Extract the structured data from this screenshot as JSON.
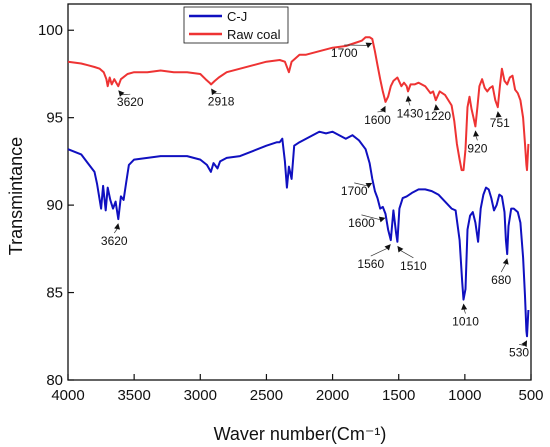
{
  "chart_data": {
    "type": "line",
    "xlabel": "Waver number(Cm⁻¹)",
    "ylabel": "Transmintance",
    "xlim": [
      4000,
      500
    ],
    "ylim": [
      80,
      101.5
    ],
    "x_ticks": [
      4000,
      3500,
      3000,
      2500,
      2000,
      1500,
      1000,
      500
    ],
    "y_ticks": [
      80,
      85,
      90,
      95,
      100
    ],
    "legend_position": "top-left",
    "grid": false,
    "series": [
      {
        "name": "C-J",
        "color": "#1010c0",
        "points": [
          [
            4000,
            93.2
          ],
          [
            3900,
            92.9
          ],
          [
            3850,
            92.4
          ],
          [
            3800,
            91.9
          ],
          [
            3780,
            91.2
          ],
          [
            3750,
            89.8
          ],
          [
            3735,
            91.1
          ],
          [
            3715,
            89.7
          ],
          [
            3700,
            91.0
          ],
          [
            3680,
            90.3
          ],
          [
            3660,
            89.8
          ],
          [
            3640,
            90.2
          ],
          [
            3620,
            89.2
          ],
          [
            3600,
            90.5
          ],
          [
            3580,
            90.3
          ],
          [
            3560,
            91.3
          ],
          [
            3540,
            92.3
          ],
          [
            3500,
            92.6
          ],
          [
            3400,
            92.7
          ],
          [
            3300,
            92.8
          ],
          [
            3200,
            92.8
          ],
          [
            3100,
            92.8
          ],
          [
            3000,
            92.6
          ],
          [
            2950,
            92.3
          ],
          [
            2920,
            91.9
          ],
          [
            2900,
            92.4
          ],
          [
            2870,
            92.1
          ],
          [
            2850,
            92.5
          ],
          [
            2800,
            92.7
          ],
          [
            2700,
            92.8
          ],
          [
            2600,
            93.1
          ],
          [
            2500,
            93.4
          ],
          [
            2420,
            93.6
          ],
          [
            2400,
            93.6
          ],
          [
            2380,
            93.8
          ],
          [
            2360,
            92.5
          ],
          [
            2345,
            91.0
          ],
          [
            2330,
            92.2
          ],
          [
            2310,
            91.5
          ],
          [
            2290,
            93.4
          ],
          [
            2250,
            93.6
          ],
          [
            2200,
            93.8
          ],
          [
            2150,
            94.0
          ],
          [
            2100,
            94.2
          ],
          [
            2050,
            94.1
          ],
          [
            2000,
            94.2
          ],
          [
            1950,
            94.0
          ],
          [
            1900,
            93.8
          ],
          [
            1850,
            94.0
          ],
          [
            1800,
            93.7
          ],
          [
            1750,
            93.2
          ],
          [
            1720,
            92.4
          ],
          [
            1700,
            91.5
          ],
          [
            1680,
            90.8
          ],
          [
            1660,
            90.4
          ],
          [
            1640,
            89.8
          ],
          [
            1620,
            89.9
          ],
          [
            1600,
            89.5
          ],
          [
            1580,
            88.6
          ],
          [
            1560,
            88.0
          ],
          [
            1540,
            89.7
          ],
          [
            1520,
            88.4
          ],
          [
            1510,
            87.9
          ],
          [
            1495,
            89.8
          ],
          [
            1470,
            90.4
          ],
          [
            1440,
            90.5
          ],
          [
            1400,
            90.7
          ],
          [
            1350,
            90.9
          ],
          [
            1300,
            90.9
          ],
          [
            1250,
            90.8
          ],
          [
            1200,
            90.6
          ],
          [
            1150,
            90.2
          ],
          [
            1100,
            89.8
          ],
          [
            1070,
            89.7
          ],
          [
            1040,
            88.0
          ],
          [
            1020,
            85.6
          ],
          [
            1010,
            84.6
          ],
          [
            995,
            85.2
          ],
          [
            980,
            88.6
          ],
          [
            960,
            89.4
          ],
          [
            940,
            89.6
          ],
          [
            920,
            89.0
          ],
          [
            900,
            87.9
          ],
          [
            880,
            89.8
          ],
          [
            860,
            90.6
          ],
          [
            840,
            91.0
          ],
          [
            820,
            90.9
          ],
          [
            800,
            90.4
          ],
          [
            780,
            89.7
          ],
          [
            760,
            90.0
          ],
          [
            740,
            90.6
          ],
          [
            720,
            90.5
          ],
          [
            700,
            89.6
          ],
          [
            690,
            88.0
          ],
          [
            680,
            87.2
          ],
          [
            670,
            88.8
          ],
          [
            650,
            89.8
          ],
          [
            630,
            89.8
          ],
          [
            600,
            89.6
          ],
          [
            580,
            89.0
          ],
          [
            560,
            87.0
          ],
          [
            545,
            84.8
          ],
          [
            535,
            82.8
          ],
          [
            530,
            82.5
          ],
          [
            520,
            84.0
          ]
        ]
      },
      {
        "name": "Raw coal",
        "color": "#ee3333",
        "points": [
          [
            4000,
            98.2
          ],
          [
            3900,
            98.1
          ],
          [
            3850,
            98.0
          ],
          [
            3800,
            97.9
          ],
          [
            3760,
            97.8
          ],
          [
            3730,
            97.6
          ],
          [
            3710,
            97.2
          ],
          [
            3700,
            96.8
          ],
          [
            3685,
            97.3
          ],
          [
            3670,
            96.9
          ],
          [
            3650,
            97.2
          ],
          [
            3620,
            96.8
          ],
          [
            3600,
            97.2
          ],
          [
            3550,
            97.5
          ],
          [
            3500,
            97.6
          ],
          [
            3400,
            97.6
          ],
          [
            3300,
            97.7
          ],
          [
            3200,
            97.6
          ],
          [
            3100,
            97.6
          ],
          [
            3000,
            97.5
          ],
          [
            2960,
            97.2
          ],
          [
            2930,
            97.0
          ],
          [
            2918,
            96.9
          ],
          [
            2890,
            97.1
          ],
          [
            2860,
            97.3
          ],
          [
            2800,
            97.6
          ],
          [
            2700,
            97.8
          ],
          [
            2600,
            98.0
          ],
          [
            2500,
            98.2
          ],
          [
            2400,
            98.3
          ],
          [
            2360,
            98.2
          ],
          [
            2330,
            97.6
          ],
          [
            2310,
            98.2
          ],
          [
            2250,
            98.6
          ],
          [
            2200,
            98.6
          ],
          [
            2100,
            98.8
          ],
          [
            2000,
            99.0
          ],
          [
            1900,
            99.1
          ],
          [
            1820,
            99.3
          ],
          [
            1780,
            99.4
          ],
          [
            1750,
            99.6
          ],
          [
            1720,
            99.6
          ],
          [
            1700,
            99.5
          ],
          [
            1680,
            98.8
          ],
          [
            1660,
            98.0
          ],
          [
            1640,
            97.2
          ],
          [
            1620,
            96.5
          ],
          [
            1600,
            95.9
          ],
          [
            1580,
            96.2
          ],
          [
            1560,
            96.8
          ],
          [
            1540,
            97.1
          ],
          [
            1510,
            97.3
          ],
          [
            1480,
            96.8
          ],
          [
            1460,
            97.0
          ],
          [
            1440,
            96.8
          ],
          [
            1430,
            96.5
          ],
          [
            1410,
            96.9
          ],
          [
            1380,
            96.9
          ],
          [
            1350,
            97.0
          ],
          [
            1300,
            96.8
          ],
          [
            1260,
            96.4
          ],
          [
            1240,
            96.5
          ],
          [
            1220,
            96.0
          ],
          [
            1190,
            96.5
          ],
          [
            1150,
            96.3
          ],
          [
            1100,
            95.7
          ],
          [
            1080,
            94.8
          ],
          [
            1060,
            93.5
          ],
          [
            1040,
            92.6
          ],
          [
            1025,
            92.0
          ],
          [
            1010,
            92.0
          ],
          [
            995,
            93.2
          ],
          [
            980,
            95.6
          ],
          [
            965,
            96.2
          ],
          [
            950,
            95.5
          ],
          [
            935,
            95.0
          ],
          [
            920,
            94.5
          ],
          [
            905,
            95.6
          ],
          [
            890,
            96.8
          ],
          [
            870,
            97.2
          ],
          [
            850,
            96.7
          ],
          [
            830,
            96.5
          ],
          [
            810,
            96.7
          ],
          [
            790,
            96.8
          ],
          [
            770,
            96.0
          ],
          [
            751,
            95.6
          ],
          [
            735,
            96.8
          ],
          [
            720,
            97.8
          ],
          [
            700,
            97.1
          ],
          [
            680,
            96.9
          ],
          [
            660,
            97.3
          ],
          [
            640,
            97.4
          ],
          [
            620,
            96.6
          ],
          [
            600,
            96.4
          ],
          [
            580,
            96.0
          ],
          [
            560,
            95.0
          ],
          [
            545,
            93.5
          ],
          [
            535,
            92.3
          ],
          [
            530,
            92.0
          ],
          [
            520,
            93.5
          ]
        ]
      }
    ],
    "annotations": [
      {
        "label": "3620",
        "series": "Raw coal",
        "x": 3620,
        "y": 96.8,
        "dx": 12,
        "dy": 18
      },
      {
        "label": "2918",
        "series": "Raw coal",
        "x": 2918,
        "y": 96.9,
        "dx": 10,
        "dy": 19
      },
      {
        "label": "1700",
        "series": "Raw coal",
        "x": 1700,
        "y": 99.5,
        "dx": -28,
        "dy": 16
      },
      {
        "label": "1600",
        "series": "Raw coal",
        "x": 1600,
        "y": 95.9,
        "dx": -8,
        "dy": 20
      },
      {
        "label": "1430",
        "series": "Raw coal",
        "x": 1430,
        "y": 96.5,
        "dx": 2,
        "dy": 24
      },
      {
        "label": "1220",
        "series": "Raw coal",
        "x": 1220,
        "y": 96.0,
        "dx": 2,
        "dy": 18
      },
      {
        "label": "920",
        "series": "Raw coal",
        "x": 920,
        "y": 94.5,
        "dx": 2,
        "dy": 24
      },
      {
        "label": "751",
        "series": "Raw coal",
        "x": 751,
        "y": 95.6,
        "dx": 2,
        "dy": 18
      },
      {
        "label": "3620",
        "series": "C-J",
        "x": 3620,
        "y": 89.2,
        "dx": -4,
        "dy": 24
      },
      {
        "label": "1700",
        "series": "C-J",
        "x": 1700,
        "y": 91.5,
        "dx": -18,
        "dy": 14
      },
      {
        "label": "1600",
        "series": "C-J",
        "x": 1600,
        "y": 89.5,
        "dx": -24,
        "dy": 11
      },
      {
        "label": "1560",
        "series": "C-J",
        "x": 1560,
        "y": 88.0,
        "dx": -20,
        "dy": 26
      },
      {
        "label": "1510",
        "series": "C-J",
        "x": 1510,
        "y": 87.9,
        "dx": 16,
        "dy": 26
      },
      {
        "label": "1010",
        "series": "C-J",
        "x": 1010,
        "y": 84.6,
        "dx": 2,
        "dy": 24
      },
      {
        "label": "680",
        "series": "C-J",
        "x": 680,
        "y": 87.2,
        "dx": -6,
        "dy": 28
      },
      {
        "label": "530",
        "series": "C-J",
        "x": 530,
        "y": 82.5,
        "dx": -8,
        "dy": 18
      }
    ]
  }
}
